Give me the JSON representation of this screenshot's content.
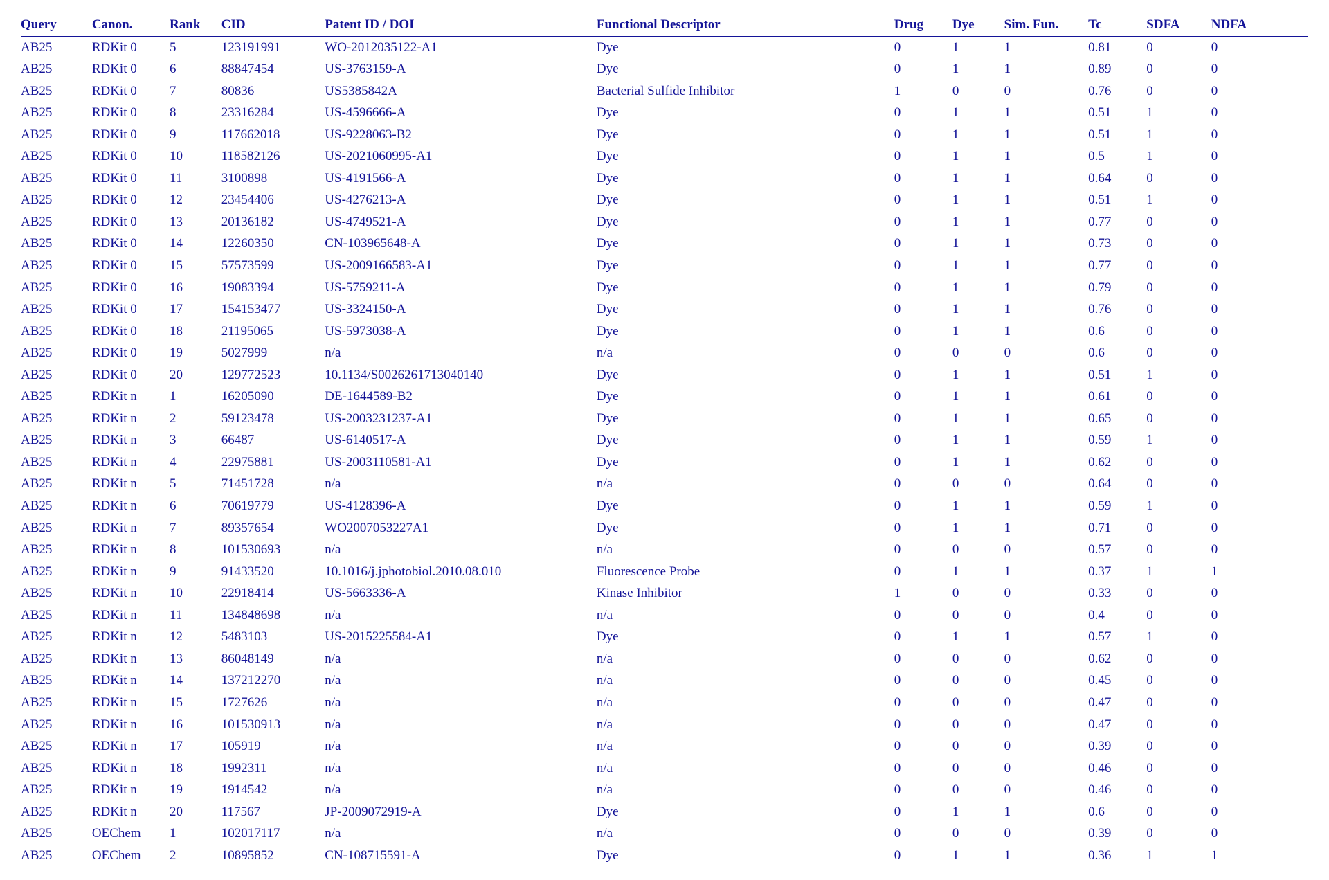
{
  "colors": {
    "text": "#141498",
    "rule": "#141498",
    "background": "#ffffff"
  },
  "typography": {
    "font_family": "Times New Roman",
    "font_size_pt": 14,
    "header_weight": "bold"
  },
  "table": {
    "columns": [
      {
        "key": "query",
        "label": "Query",
        "width_pct": 5.5
      },
      {
        "key": "canon",
        "label": "Canon.",
        "width_pct": 6.0
      },
      {
        "key": "rank",
        "label": "Rank",
        "width_pct": 4.0
      },
      {
        "key": "cid",
        "label": "CID",
        "width_pct": 8.0
      },
      {
        "key": "patent",
        "label": "Patent ID / DOI",
        "width_pct": 21.0
      },
      {
        "key": "func",
        "label": "Functional Descriptor",
        "width_pct": 23.0
      },
      {
        "key": "drug",
        "label": "Drug",
        "width_pct": 4.5
      },
      {
        "key": "dye",
        "label": "Dye",
        "width_pct": 4.0
      },
      {
        "key": "simfun",
        "label": "Sim. Fun.",
        "width_pct": 6.5
      },
      {
        "key": "tc",
        "label": "Tc",
        "width_pct": 4.5
      },
      {
        "key": "sdfa",
        "label": "SDFA",
        "width_pct": 5.0
      },
      {
        "key": "ndfa",
        "label": "NDFA",
        "width_pct": 7.5
      }
    ],
    "rows": [
      [
        "AB25",
        "RDKit 0",
        "5",
        "123191991",
        "WO-2012035122-A1",
        "Dye",
        "0",
        "1",
        "1",
        "0.81",
        "0",
        "0"
      ],
      [
        "AB25",
        "RDKit 0",
        "6",
        "88847454",
        "US-3763159-A",
        "Dye",
        "0",
        "1",
        "1",
        "0.89",
        "0",
        "0"
      ],
      [
        "AB25",
        "RDKit 0",
        "7",
        "80836",
        "US5385842A",
        "Bacterial Sulfide Inhibitor",
        "1",
        "0",
        "0",
        "0.76",
        "0",
        "0"
      ],
      [
        "AB25",
        "RDKit 0",
        "8",
        "23316284",
        "US-4596666-A",
        "Dye",
        "0",
        "1",
        "1",
        "0.51",
        "1",
        "0"
      ],
      [
        "AB25",
        "RDKit 0",
        "9",
        "117662018",
        "US-9228063-B2",
        "Dye",
        "0",
        "1",
        "1",
        "0.51",
        "1",
        "0"
      ],
      [
        "AB25",
        "RDKit 0",
        "10",
        "118582126",
        "US-2021060995-A1",
        "Dye",
        "0",
        "1",
        "1",
        "0.5",
        "1",
        "0"
      ],
      [
        "AB25",
        "RDKit 0",
        "11",
        "3100898",
        "US-4191566-A",
        "Dye",
        "0",
        "1",
        "1",
        "0.64",
        "0",
        "0"
      ],
      [
        "AB25",
        "RDKit 0",
        "12",
        "23454406",
        "US-4276213-A",
        "Dye",
        "0",
        "1",
        "1",
        "0.51",
        "1",
        "0"
      ],
      [
        "AB25",
        "RDKit 0",
        "13",
        "20136182",
        "US-4749521-A",
        "Dye",
        "0",
        "1",
        "1",
        "0.77",
        "0",
        "0"
      ],
      [
        "AB25",
        "RDKit 0",
        "14",
        "12260350",
        "CN-103965648-A",
        "Dye",
        "0",
        "1",
        "1",
        "0.73",
        "0",
        "0"
      ],
      [
        "AB25",
        "RDKit 0",
        "15",
        "57573599",
        "US-2009166583-A1",
        "Dye",
        "0",
        "1",
        "1",
        "0.77",
        "0",
        "0"
      ],
      [
        "AB25",
        "RDKit 0",
        "16",
        "19083394",
        "US-5759211-A",
        "Dye",
        "0",
        "1",
        "1",
        "0.79",
        "0",
        "0"
      ],
      [
        "AB25",
        "RDKit 0",
        "17",
        "154153477",
        "US-3324150-A",
        "Dye",
        "0",
        "1",
        "1",
        "0.76",
        "0",
        "0"
      ],
      [
        "AB25",
        "RDKit 0",
        "18",
        "21195065",
        "US-5973038-A",
        "Dye",
        "0",
        "1",
        "1",
        "0.6",
        "0",
        "0"
      ],
      [
        "AB25",
        "RDKit 0",
        "19",
        "5027999",
        "n/a",
        "n/a",
        "0",
        "0",
        "0",
        "0.6",
        "0",
        "0"
      ],
      [
        "AB25",
        "RDKit 0",
        "20",
        "129772523",
        "10.1134/S0026261713040140",
        "Dye",
        "0",
        "1",
        "1",
        "0.51",
        "1",
        "0"
      ],
      [
        "AB25",
        "RDKit n",
        "1",
        "16205090",
        "DE-1644589-B2",
        "Dye",
        "0",
        "1",
        "1",
        "0.61",
        "0",
        "0"
      ],
      [
        "AB25",
        "RDKit n",
        "2",
        "59123478",
        "US-2003231237-A1",
        "Dye",
        "0",
        "1",
        "1",
        "0.65",
        "0",
        "0"
      ],
      [
        "AB25",
        "RDKit n",
        "3",
        "66487",
        "US-6140517-A",
        "Dye",
        "0",
        "1",
        "1",
        "0.59",
        "1",
        "0"
      ],
      [
        "AB25",
        "RDKit n",
        "4",
        "22975881",
        "US-2003110581-A1",
        "Dye",
        "0",
        "1",
        "1",
        "0.62",
        "0",
        "0"
      ],
      [
        "AB25",
        "RDKit n",
        "5",
        "71451728",
        "n/a",
        "n/a",
        "0",
        "0",
        "0",
        "0.64",
        "0",
        "0"
      ],
      [
        "AB25",
        "RDKit n",
        "6",
        "70619779",
        "US-4128396-A",
        "Dye",
        "0",
        "1",
        "1",
        "0.59",
        "1",
        "0"
      ],
      [
        "AB25",
        "RDKit n",
        "7",
        "89357654",
        "WO2007053227A1",
        "Dye",
        "0",
        "1",
        "1",
        "0.71",
        "0",
        "0"
      ],
      [
        "AB25",
        "RDKit n",
        "8",
        "101530693",
        "n/a",
        "n/a",
        "0",
        "0",
        "0",
        "0.57",
        "0",
        "0"
      ],
      [
        "AB25",
        "RDKit n",
        "9",
        "91433520",
        "10.1016/j.jphotobiol.2010.08.010",
        "Fluorescence Probe",
        "0",
        "1",
        "1",
        "0.37",
        "1",
        "1"
      ],
      [
        "AB25",
        "RDKit n",
        "10",
        "22918414",
        "US-5663336-A",
        "Kinase Inhibitor",
        "1",
        "0",
        "0",
        "0.33",
        "0",
        "0"
      ],
      [
        "AB25",
        "RDKit n",
        "11",
        "134848698",
        "n/a",
        "n/a",
        "0",
        "0",
        "0",
        "0.4",
        "0",
        "0"
      ],
      [
        "AB25",
        "RDKit n",
        "12",
        "5483103",
        "US-2015225584-A1",
        "Dye",
        "0",
        "1",
        "1",
        "0.57",
        "1",
        "0"
      ],
      [
        "AB25",
        "RDKit n",
        "13",
        "86048149",
        "n/a",
        "n/a",
        "0",
        "0",
        "0",
        "0.62",
        "0",
        "0"
      ],
      [
        "AB25",
        "RDKit n",
        "14",
        "137212270",
        "n/a",
        "n/a",
        "0",
        "0",
        "0",
        "0.45",
        "0",
        "0"
      ],
      [
        "AB25",
        "RDKit n",
        "15",
        "1727626",
        "n/a",
        "n/a",
        "0",
        "0",
        "0",
        "0.47",
        "0",
        "0"
      ],
      [
        "AB25",
        "RDKit n",
        "16",
        "101530913",
        "n/a",
        "n/a",
        "0",
        "0",
        "0",
        "0.47",
        "0",
        "0"
      ],
      [
        "AB25",
        "RDKit n",
        "17",
        "105919",
        "n/a",
        "n/a",
        "0",
        "0",
        "0",
        "0.39",
        "0",
        "0"
      ],
      [
        "AB25",
        "RDKit n",
        "18",
        "1992311",
        "n/a",
        "n/a",
        "0",
        "0",
        "0",
        "0.46",
        "0",
        "0"
      ],
      [
        "AB25",
        "RDKit n",
        "19",
        "1914542",
        "n/a",
        "n/a",
        "0",
        "0",
        "0",
        "0.46",
        "0",
        "0"
      ],
      [
        "AB25",
        "RDKit n",
        "20",
        "117567",
        "JP-2009072919-A",
        "Dye",
        "0",
        "1",
        "1",
        "0.6",
        "0",
        "0"
      ],
      [
        "AB25",
        "OEChem",
        "1",
        "102017117",
        "n/a",
        "n/a",
        "0",
        "0",
        "0",
        "0.39",
        "0",
        "0"
      ],
      [
        "AB25",
        "OEChem",
        "2",
        "10895852",
        "CN-108715591-A",
        "Dye",
        "0",
        "1",
        "1",
        "0.36",
        "1",
        "1"
      ]
    ]
  }
}
